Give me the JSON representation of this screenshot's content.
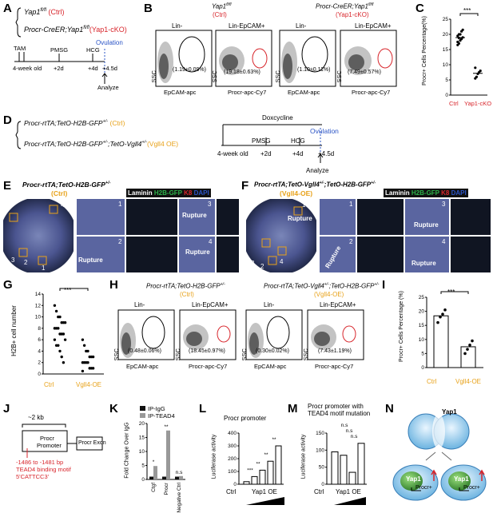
{
  "panels": {
    "A": {
      "label": "A",
      "geno1": "Yap1",
      "geno1_sup": "fl/fl",
      "geno1_tag": "(Ctrl)",
      "geno2": "Procr-CreER;Yap1",
      "geno2_sup": "fl/fl",
      "geno2_tag": "(Yap1-cKO)",
      "timeline": [
        "TAM",
        "PMSG",
        "HCG",
        "Ovulation",
        "4-week old",
        "+2d",
        "+4d",
        "+4.5d",
        "Analyze"
      ]
    },
    "B": {
      "label": "B",
      "title_ctrl": "Yap1",
      "title_ctrl_sup": "fl/fl",
      "title_ctrl_tag": "(Ctrl)",
      "title_ko": "Procr-CreER;Yap1",
      "title_ko_sup": "fl/fl",
      "title_ko_tag": "(Yap1-cKO)",
      "gate1": "Lin-",
      "gate2": "Lin-EpCAM+",
      "ctrl_p1": "(1.19±0.09%)",
      "ctrl_p2": "(19.18±0.63%)",
      "ko_p1": "(1.10±0.11%)",
      "ko_p2": "(7.49±0.57%)",
      "xlab1": "EpCAM-apc",
      "xlab2": "Procr-apc-Cy7",
      "ylab": "SSC"
    },
    "C": {
      "label": "C",
      "ylabel": "Procr+ Cells Percentage(%)",
      "sig": "***",
      "cats": [
        "Ctrl",
        "Yap1-cKO"
      ],
      "ticks": [
        "0",
        "5",
        "10",
        "15",
        "20",
        "25"
      ]
    },
    "D": {
      "label": "D",
      "geno1": "Procr-rtTA;TetO-H2B-GFP",
      "geno1_sup": "+/-",
      "geno1_tag": "(Ctrl)",
      "geno2": "Procr-rtTA;TetO-H2B-GFP",
      "geno2_sup": "+/-",
      "geno2_mid": ";TetO-Vgll4",
      "geno2_sup2": "+/-",
      "geno2_tag": "(Vgll4 OE)",
      "timeline": [
        "Doxcycline",
        "PMSG",
        "HCG",
        "Ovulation",
        "4-week old",
        "+2d",
        "+4d",
        "+4.5d",
        "Analyze"
      ]
    },
    "E": {
      "label": "E",
      "title": "Procr-rtTA;TetO-H2B-GFP",
      "title_sup": "+/-",
      "tag": "(Ctrl)",
      "legend": [
        "Laminin",
        "H2B-GFP",
        "K8",
        "DAPI"
      ],
      "rupture": [
        "Rupture",
        "Rupture",
        "Rupture"
      ],
      "nums": [
        "4",
        "1",
        "2",
        "3",
        "2",
        "3",
        "1",
        "4"
      ]
    },
    "F": {
      "label": "F",
      "title": "Procr-rtTA;TetO-Vgll4",
      "title_sup": "+/-",
      "title_mid": ";TetO-H2B-GFP",
      "title_sup2": "+/-",
      "tag": "(Vgll4-OE)",
      "legend": [
        "Laminin",
        "H2B-GFP",
        "K8",
        "DAPI"
      ],
      "rupture": [
        "Rupture",
        "Rupture",
        "Rupture",
        "Rupture"
      ],
      "nums": [
        "1",
        "2",
        "3",
        "4",
        "1",
        "3",
        "2",
        "4"
      ]
    },
    "G": {
      "label": "G",
      "ylabel": "H2B+ cell number",
      "sig": "***",
      "cats": [
        "Ctrl",
        "Vgll4-OE"
      ],
      "ticks": [
        "0",
        "2",
        "4",
        "6",
        "8",
        "10",
        "12",
        "14"
      ]
    },
    "H": {
      "label": "H",
      "title_ctrl": "Procr-rtTA;TetO-H2B-GFP",
      "title_ctrl_sup": "+/-",
      "title_ctrl_tag": "(Ctrl)",
      "title_oe": "Procr-rtTA;TetO-Vgll4",
      "title_oe_sup": "+/-",
      "title_oe_mid": ";TetO-H2B-GFP",
      "title_oe_sup2": "+/-",
      "title_oe_tag": "(Vgll4-OE)",
      "gate1": "Lin-",
      "gate2": "Lin-EpCAM+",
      "ctrl_p1": "(0.48±0.06%)",
      "ctrl_p2": "(18.45±0.97%)",
      "oe_p1": "(0.30±0.02%)",
      "oe_p2": "(7.43±1.19%)",
      "xlab1": "EpCAM-apc",
      "xlab2": "Procr-apc-Cy7",
      "ylab": "SSC"
    },
    "I": {
      "label": "I",
      "ylabel": "Procr+ Cells Percentage (%)",
      "sig": "***",
      "cats": [
        "Ctrl",
        "Vgll4-OE"
      ],
      "ticks": [
        "0",
        "5",
        "10",
        "15",
        "20",
        "25"
      ]
    },
    "J": {
      "label": "J",
      "kb": "~2 kb",
      "promoter1": "Procr",
      "promoter2": "Promoter",
      "exon": "Procr Exon",
      "site": "-1486 to -1481 bp",
      "motif1": "TEAD4 binding motif",
      "motif2": "5'CATTCC3'"
    },
    "K": {
      "label": "K",
      "ylabel": "Fold Change Over IgG",
      "legend": [
        "IP-IgG",
        "IP-TEAD4"
      ],
      "sig": [
        "*",
        "**",
        "n.s"
      ],
      "ticks": [
        "0",
        "5",
        "10",
        "15",
        "20"
      ]
    },
    "L": {
      "label": "L",
      "title": "Procr promoter",
      "ylabel": "Luciferase activity",
      "xlabels": [
        "Ctrl",
        "Yap1 OE"
      ],
      "sig": [
        "***",
        "**",
        "**",
        "**"
      ],
      "ticks": [
        "0",
        "100",
        "200",
        "300",
        "400"
      ]
    },
    "M": {
      "label": "M",
      "title1": "Procr promoter with",
      "title2": "TEAD4 motif mutation",
      "ylabel": "Luciferase activity",
      "xlabels": [
        "Ctrl",
        "Yap1 OE"
      ],
      "sig": [
        "n.s",
        "n.s",
        "n.s"
      ],
      "ticks": [
        "0",
        "50",
        "100",
        "150"
      ]
    },
    "N": {
      "label": "N",
      "cell_top": "Yap1",
      "cell_l1": "Yap1",
      "cell_l2": "Procr+",
      "cell_r1": "Yap1",
      "cell_r2": "Procr+"
    }
  },
  "chart_data": [
    {
      "type": "scatter",
      "panel": "C",
      "categories": [
        "Ctrl",
        "Yap1-cKO"
      ],
      "series": [
        {
          "name": "Ctrl",
          "values": [
            16.5,
            17,
            18,
            18.5,
            19,
            19.5,
            20,
            20,
            21,
            21.5,
            17.5,
            18.8
          ]
        },
        {
          "name": "Yap1-cKO",
          "values": [
            5.5,
            6,
            7,
            7.5,
            8,
            9
          ]
        }
      ],
      "ylabel": "Procr+ Cells Percentage(%)",
      "ylim": [
        0,
        25
      ]
    },
    {
      "type": "scatter",
      "panel": "G",
      "categories": [
        "Ctrl",
        "Vgll4-OE"
      ],
      "series": [
        {
          "name": "Ctrl",
          "values": [
            12,
            11,
            10,
            10,
            9,
            9,
            9,
            8,
            8,
            8,
            7,
            7,
            7,
            6,
            6,
            5,
            5,
            4,
            3,
            2
          ]
        },
        {
          "name": "Vgll4-OE",
          "values": [
            6,
            5,
            4,
            4,
            3,
            3,
            3,
            2,
            2,
            2,
            2,
            1,
            1,
            1,
            0.5
          ]
        }
      ],
      "ylabel": "H2B+ cell number",
      "ylim": [
        0,
        14
      ]
    },
    {
      "type": "bar",
      "panel": "I",
      "categories": [
        "Ctrl",
        "Vgll4-OE"
      ],
      "values": [
        18.4,
        7.4
      ],
      "points": [
        [
          16,
          18,
          19,
          20.5
        ],
        [
          5,
          6.5,
          8,
          9.5
        ]
      ],
      "ylabel": "Procr+ Cells Percentage (%)",
      "ylim": [
        0,
        25
      ]
    },
    {
      "type": "bar",
      "panel": "K",
      "categories": [
        "Ctgf",
        "Procr",
        "Negative Ctrl"
      ],
      "series": [
        {
          "name": "IP-IgG",
          "values": [
            1,
            1,
            1
          ]
        },
        {
          "name": "IP-TEAD4",
          "values": [
            4.8,
            17.5,
            1.2
          ]
        }
      ],
      "ylabel": "Fold Change Over IgG",
      "ylim": [
        0,
        20
      ]
    },
    {
      "type": "bar",
      "panel": "L",
      "categories": [
        "Ctrl",
        "Yap1 OE 1",
        "Yap1 OE 2",
        "Yap1 OE 3",
        "Yap1 OE 4"
      ],
      "values": [
        20,
        60,
        110,
        180,
        300
      ],
      "ylabel": "Luciferase activity",
      "ylim": [
        0,
        400
      ]
    },
    {
      "type": "bar",
      "panel": "M",
      "categories": [
        "Ctrl",
        "Yap1 OE 1",
        "Yap1 OE 2",
        "Yap1 OE 3"
      ],
      "values": [
        95,
        85,
        35,
        120
      ],
      "ylabel": "Luciferase activity",
      "ylim": [
        0,
        150
      ]
    }
  ]
}
